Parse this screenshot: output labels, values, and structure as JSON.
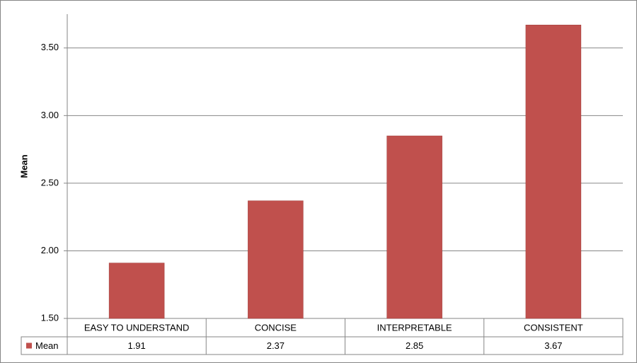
{
  "chart_data": {
    "type": "bar",
    "y_label": "Mean",
    "categories": [
      "EASY TO UNDERSTAND",
      "CONCISE",
      "INTERPRETABLE",
      "CONSISTENT"
    ],
    "series": [
      {
        "name": "Mean",
        "color": "#c0504d",
        "values": [
          1.91,
          2.37,
          2.85,
          3.67
        ]
      }
    ],
    "ylim": [
      1.5,
      3.75
    ],
    "yticks": [
      {
        "value": 1.5,
        "label": "1.50"
      },
      {
        "value": 2.0,
        "label": "2.00"
      },
      {
        "value": 2.5,
        "label": "2.50"
      },
      {
        "value": 3.0,
        "label": "3.00"
      },
      {
        "value": 3.5,
        "label": "3.50"
      }
    ],
    "grid": true
  }
}
